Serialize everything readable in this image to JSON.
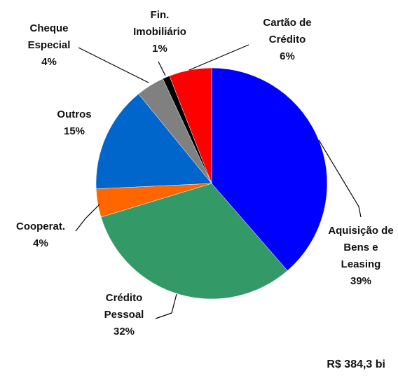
{
  "chart_data": {
    "type": "pie",
    "categories": [
      "Aquisição de Bens e Leasing",
      "Crédito Pessoal",
      "Cooperat.",
      "Outros",
      "Cheque Especial",
      "Fin. Imobiliário",
      "Cartão de Crédito"
    ],
    "values": [
      39,
      32,
      4,
      15,
      4,
      1,
      6
    ],
    "value_labels": [
      "39%",
      "32%",
      "4%",
      "15%",
      "4%",
      "1%",
      "6%"
    ],
    "colors": [
      "#0000ff",
      "#339966",
      "#ff6600",
      "#0066cc",
      "#808080",
      "#000000",
      "#ff0000"
    ],
    "total_label": "R$ 384,3 bi"
  }
}
